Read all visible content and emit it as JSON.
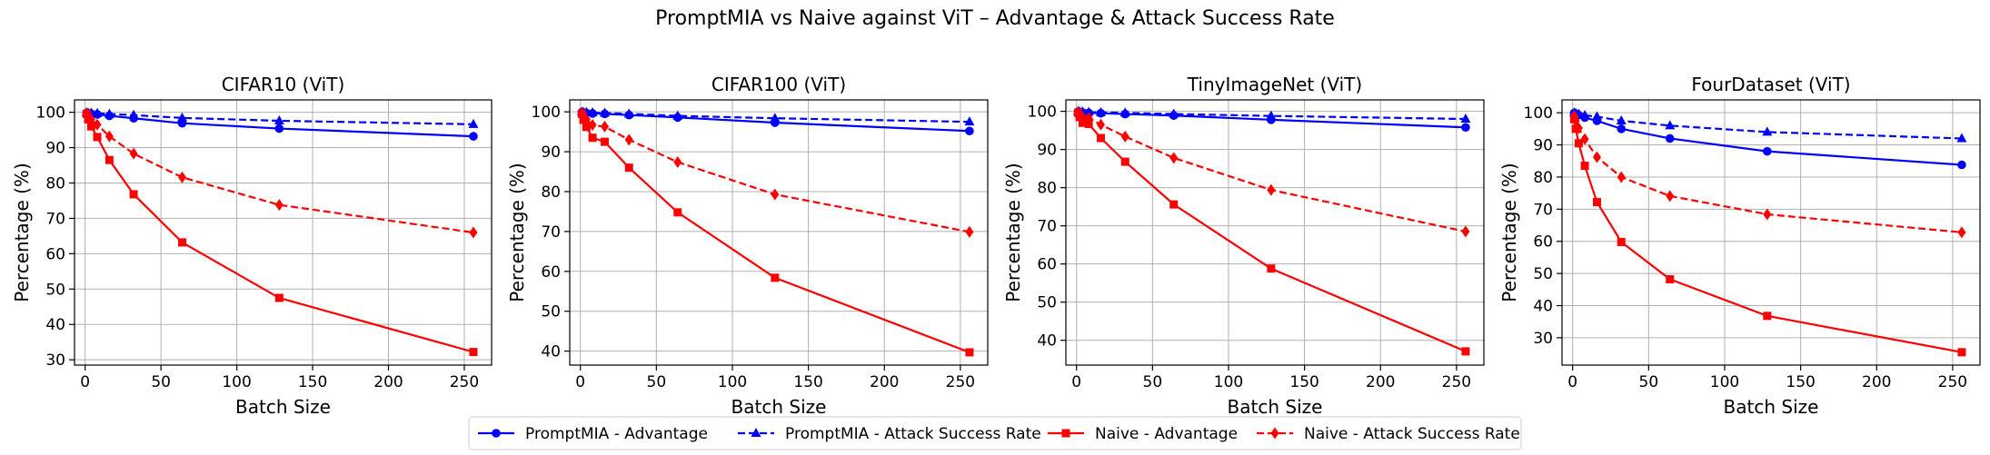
{
  "figure_title": "PromptMIA vs Naive against ViT – Advantage & Attack Success Rate",
  "colors": {
    "blue": "#0000ff",
    "red": "#ff0000",
    "grid": "#b0b0b0",
    "axis": "#000000"
  },
  "legend": [
    {
      "label": "PromptMIA - Advantage",
      "color": "#0000ff",
      "dash": false,
      "marker": "circle"
    },
    {
      "label": "PromptMIA - Attack Success Rate",
      "color": "#0000ff",
      "dash": true,
      "marker": "triangle"
    },
    {
      "label": "Naive - Advantage",
      "color": "#ff0000",
      "dash": false,
      "marker": "square"
    },
    {
      "label": "Naive - Attack Success Rate",
      "color": "#ff0000",
      "dash": true,
      "marker": "diamond"
    }
  ],
  "chart_data": [
    {
      "type": "line",
      "title": "CIFAR10 (ViT)",
      "xlabel": "Batch Size",
      "ylabel": "Percentage (%)",
      "xlim": [
        -7,
        268
      ],
      "ylim": [
        28.5,
        103.5
      ],
      "xticks": [
        0,
        50,
        100,
        150,
        200,
        250
      ],
      "yticks": [
        30,
        40,
        50,
        60,
        70,
        80,
        90,
        100
      ],
      "grid": true,
      "x": [
        1,
        2,
        4,
        8,
        16,
        32,
        64,
        128,
        256
      ],
      "series": [
        {
          "name": "PromptMIA - Advantage",
          "values": [
            99.8,
            99.7,
            99.6,
            99.4,
            99.0,
            98.3,
            96.9,
            95.4,
            93.2
          ]
        },
        {
          "name": "PromptMIA - Attack Success Rate",
          "values": [
            99.9,
            99.8,
            99.8,
            99.7,
            99.5,
            99.2,
            98.4,
            97.6,
            96.6
          ]
        },
        {
          "name": "Naive - Advantage",
          "values": [
            99.5,
            98.0,
            96.0,
            93.0,
            86.5,
            76.8,
            63.2,
            47.5,
            32.2
          ]
        },
        {
          "name": "Naive - Attack Success Rate",
          "values": [
            99.7,
            99.0,
            98.0,
            96.5,
            93.2,
            88.3,
            81.6,
            73.8,
            66.0
          ]
        }
      ]
    },
    {
      "type": "line",
      "title": "CIFAR100 (ViT)",
      "xlabel": "Batch Size",
      "ylabel": "Percentage (%)",
      "xlim": [
        -7,
        268
      ],
      "ylim": [
        36.5,
        103
      ],
      "xticks": [
        0,
        50,
        100,
        150,
        200,
        250
      ],
      "yticks": [
        40,
        50,
        60,
        70,
        80,
        90,
        100
      ],
      "grid": true,
      "x": [
        1,
        2,
        4,
        8,
        16,
        32,
        64,
        128,
        256
      ],
      "series": [
        {
          "name": "PromptMIA - Advantage",
          "values": [
            99.9,
            99.8,
            99.7,
            99.6,
            99.5,
            99.2,
            98.6,
            97.3,
            95.2
          ]
        },
        {
          "name": "PromptMIA - Attack Success Rate",
          "values": [
            100.0,
            99.9,
            99.9,
            99.8,
            99.7,
            99.5,
            99.0,
            98.4,
            97.5
          ]
        },
        {
          "name": "Naive - Advantage",
          "values": [
            99.5,
            98.0,
            96.2,
            93.5,
            92.5,
            86.0,
            74.8,
            58.4,
            39.7
          ]
        },
        {
          "name": "Naive - Attack Success Rate",
          "values": [
            99.7,
            99.0,
            98.1,
            96.7,
            96.3,
            93.0,
            87.4,
            79.3,
            69.9
          ]
        }
      ]
    },
    {
      "type": "line",
      "title": "TinyImageNet (ViT)",
      "xlabel": "Batch Size",
      "ylabel": "Percentage (%)",
      "xlim": [
        -7,
        268
      ],
      "ylim": [
        33.5,
        103
      ],
      "xticks": [
        0,
        50,
        100,
        150,
        200,
        250
      ],
      "yticks": [
        40,
        50,
        60,
        70,
        80,
        90,
        100
      ],
      "grid": true,
      "x": [
        1,
        2,
        4,
        8,
        16,
        32,
        64,
        128,
        256
      ],
      "series": [
        {
          "name": "PromptMIA - Advantage",
          "values": [
            99.9,
            99.8,
            99.7,
            99.6,
            99.5,
            99.3,
            98.9,
            97.8,
            95.8
          ]
        },
        {
          "name": "PromptMIA - Attack Success Rate",
          "values": [
            100.0,
            99.9,
            99.9,
            99.8,
            99.7,
            99.6,
            99.3,
            98.8,
            98.0
          ]
        },
        {
          "name": "Naive - Advantage",
          "values": [
            99.6,
            98.5,
            97.0,
            96.7,
            93.0,
            86.8,
            75.6,
            58.8,
            37.1
          ]
        },
        {
          "name": "Naive - Attack Success Rate",
          "values": [
            99.8,
            99.2,
            98.5,
            98.3,
            96.5,
            93.4,
            87.8,
            79.4,
            68.5
          ]
        }
      ]
    },
    {
      "type": "line",
      "title": "FourDataset (ViT)",
      "xlabel": "Batch Size",
      "ylabel": "Percentage (%)",
      "xlim": [
        -7,
        268
      ],
      "ylim": [
        21.5,
        104
      ],
      "xticks": [
        0,
        50,
        100,
        150,
        200,
        250
      ],
      "yticks": [
        30,
        40,
        50,
        60,
        70,
        80,
        90,
        100
      ],
      "grid": true,
      "x": [
        1,
        2,
        4,
        8,
        16,
        32,
        64,
        128,
        256
      ],
      "series": [
        {
          "name": "PromptMIA - Advantage",
          "values": [
            99.9,
            99.7,
            99.3,
            98.5,
            97.5,
            95.0,
            92.0,
            88.0,
            83.8
          ]
        },
        {
          "name": "PromptMIA - Attack Success Rate",
          "values": [
            100.0,
            99.8,
            99.6,
            99.2,
            98.8,
            97.5,
            96.0,
            94.0,
            92.0
          ]
        },
        {
          "name": "Naive - Advantage",
          "values": [
            98.0,
            95.0,
            90.5,
            83.5,
            72.2,
            59.8,
            48.2,
            36.8,
            25.5
          ]
        },
        {
          "name": "Naive - Attack Success Rate",
          "values": [
            99.0,
            97.5,
            95.2,
            91.8,
            86.2,
            80.0,
            74.1,
            68.4,
            62.8
          ]
        }
      ]
    }
  ]
}
